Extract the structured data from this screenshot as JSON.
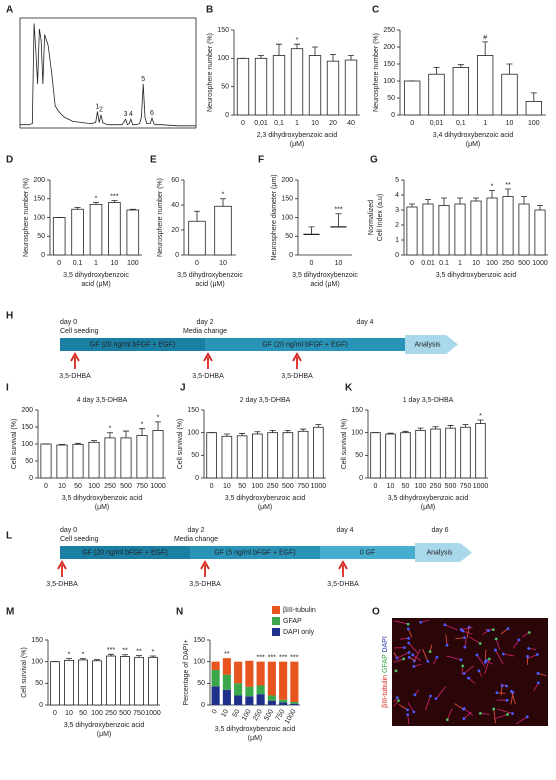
{
  "chart_data": [
    {
      "panel": "A",
      "type": "line",
      "color": "#222222",
      "xlim": [
        0,
        100
      ],
      "ylim": [
        0,
        100
      ],
      "x": [
        0,
        5,
        7,
        8,
        9,
        10,
        11,
        12,
        13,
        14,
        16,
        18,
        20,
        22,
        25,
        30,
        35,
        40,
        43,
        44,
        45,
        46,
        47,
        48,
        50,
        55,
        58,
        60,
        61,
        62,
        63,
        64,
        66,
        68,
        69,
        70,
        71,
        72,
        74,
        75,
        76,
        77,
        80,
        90,
        100
      ],
      "values": [
        3,
        3,
        4,
        95,
        70,
        40,
        90,
        80,
        40,
        85,
        75,
        50,
        20,
        15,
        10,
        6,
        5,
        4,
        5,
        15,
        5,
        12,
        5,
        4,
        3,
        3,
        3,
        8,
        3,
        4,
        8,
        3,
        3,
        4,
        10,
        40,
        10,
        4,
        4,
        9,
        4,
        3,
        3,
        2,
        2
      ],
      "peaks": [
        {
          "label": "1",
          "x": 44
        },
        {
          "label": "2",
          "x": 46
        },
        {
          "label": "3",
          "x": 60
        },
        {
          "label": "4",
          "x": 63
        },
        {
          "label": "5",
          "x": 70
        },
        {
          "label": "6",
          "x": 75
        }
      ]
    },
    {
      "panel": "B",
      "type": "bar",
      "color": "#ffffff",
      "ylabel": [
        "Neurosphere number (%)"
      ],
      "xlabel": [
        "2,3 dihydroxybenzoic acid",
        "(μM)"
      ],
      "categories": [
        "0",
        "0,01",
        "0,1",
        "1",
        "10",
        "20",
        "40"
      ],
      "values": [
        100,
        100,
        105,
        117,
        105,
        95,
        97
      ],
      "errors": [
        0,
        5,
        20,
        8,
        15,
        12,
        8
      ],
      "annotations": [
        null,
        null,
        null,
        "*",
        null,
        null,
        null
      ],
      "ylim": [
        0,
        150
      ],
      "yticks": [
        0,
        50,
        100,
        150
      ]
    },
    {
      "panel": "C",
      "type": "bar",
      "color": "#ffffff",
      "ylabel": [
        "Neurosphere number (%)"
      ],
      "xlabel": [
        "3,4 dihydroxybenzoic acid",
        "(μM)"
      ],
      "categories": [
        "0",
        "0,01",
        "0,1",
        "1",
        "10",
        "100"
      ],
      "values": [
        100,
        120,
        140,
        175,
        120,
        40
      ],
      "errors": [
        0,
        20,
        8,
        40,
        30,
        25
      ],
      "annotations": [
        null,
        null,
        null,
        "#",
        null,
        null
      ],
      "ylim": [
        0,
        250
      ],
      "yticks": [
        0,
        50,
        100,
        150,
        200,
        250
      ]
    },
    {
      "panel": "D",
      "type": "bar",
      "color": "#ffffff",
      "ylabel": [
        "Neurosphere number (%)"
      ],
      "xlabel": [
        "3,5 dihydroxybenzoic",
        "acid (μM)"
      ],
      "categories": [
        "0",
        "0.1",
        "1",
        "10",
        "100"
      ],
      "values": [
        100,
        122,
        135,
        140,
        120
      ],
      "errors": [
        0,
        5,
        5,
        5,
        2
      ],
      "annotations": [
        null,
        null,
        "*",
        "***",
        null
      ],
      "ylim": [
        0,
        200
      ],
      "yticks": [
        0,
        50,
        100,
        150,
        200
      ]
    },
    {
      "panel": "E",
      "type": "bar",
      "color": "#ffffff",
      "ylabel": [
        "Neurosphere number (%)"
      ],
      "xlabel": [
        "3,5 dihydroxybenzoic",
        "acid (μM)"
      ],
      "categories": [
        "0",
        "10"
      ],
      "values": [
        27,
        39
      ],
      "errors": [
        8,
        6
      ],
      "annotations": [
        null,
        "*"
      ],
      "ylim": [
        0,
        60
      ],
      "yticks": [
        0,
        20,
        40,
        60
      ]
    },
    {
      "panel": "F",
      "type": "strip",
      "color": "#222222",
      "ylabel": [
        "Neurosphere diameter (μm)"
      ],
      "xlabel": [
        "3,5 dihydroxybenzoic",
        "acid (μM)"
      ],
      "categories": [
        "0",
        "10"
      ],
      "values": [
        55,
        75
      ],
      "errors": [
        20,
        35
      ],
      "annotations": [
        null,
        "***"
      ],
      "ylim": [
        0,
        200
      ],
      "yticks": [
        0,
        50,
        100,
        150,
        200
      ]
    },
    {
      "panel": "G",
      "type": "bar",
      "color": "#ffffff",
      "ylabel": [
        "Normalized",
        "Cell Index (a.u)"
      ],
      "xlabel": [
        "3,5 dihydroxybenzoic acid"
      ],
      "categories": [
        "0",
        "0.01",
        "0.1",
        "1",
        "10",
        "100",
        "250",
        "500",
        "1000"
      ],
      "values": [
        3.2,
        3.4,
        3.3,
        3.4,
        3.6,
        3.8,
        3.9,
        3.4,
        3.0
      ],
      "errors": [
        0.2,
        0.3,
        0.5,
        0.4,
        0.2,
        0.5,
        0.5,
        0.5,
        0.3
      ],
      "annotations": [
        null,
        null,
        null,
        null,
        null,
        "*",
        "**",
        null,
        null
      ],
      "ylim": [
        0,
        5
      ],
      "yticks": [
        0,
        1,
        2,
        3,
        4,
        5
      ]
    },
    {
      "panel": "I",
      "type": "bar",
      "color": "#ffffff",
      "title": "4 day 3,5-DHBA",
      "ylabel": [
        "Cell survival (%)"
      ],
      "xlabel": [
        "3,5 dihydroxybenzoic acid",
        "(μM)"
      ],
      "categories": [
        "0",
        "10",
        "50",
        "100",
        "250",
        "500",
        "750",
        "1000"
      ],
      "values": [
        100,
        97,
        99,
        105,
        118,
        118,
        125,
        140
      ],
      "errors": [
        0,
        2,
        3,
        5,
        15,
        20,
        20,
        25
      ],
      "annotations": [
        null,
        null,
        null,
        null,
        "*",
        null,
        "*",
        "*"
      ],
      "ylim": [
        0,
        200
      ],
      "yticks": [
        0,
        50,
        100,
        150,
        200
      ]
    },
    {
      "panel": "J",
      "type": "bar",
      "color": "#ffffff",
      "title": "2 day 3,5-DHBA",
      "ylabel": [
        "Cell survival (%)"
      ],
      "xlabel": [
        "3,5 dihydroxybenzoic acid",
        "(μM)"
      ],
      "categories": [
        "0",
        "10",
        "50",
        "100",
        "250",
        "500",
        "750",
        "1000"
      ],
      "values": [
        100,
        92,
        93,
        97,
        100,
        100,
        103,
        112
      ],
      "errors": [
        0,
        5,
        5,
        5,
        5,
        5,
        5,
        6
      ],
      "annotations": [
        null,
        null,
        null,
        null,
        null,
        null,
        null,
        null
      ],
      "ylim": [
        0,
        150
      ],
      "yticks": [
        0,
        50,
        100,
        150
      ]
    },
    {
      "panel": "K",
      "type": "bar",
      "color": "#ffffff",
      "title": "1 day 3,5-DHBA",
      "ylabel": [
        "Cell survival (%)"
      ],
      "xlabel": [
        "3,5 dihydroxybenzoic acid",
        "(μM)"
      ],
      "categories": [
        "0",
        "10",
        "50",
        "100",
        "250",
        "500",
        "750",
        "1000"
      ],
      "values": [
        100,
        97,
        100,
        105,
        108,
        110,
        112,
        120
      ],
      "errors": [
        0,
        2,
        3,
        5,
        5,
        6,
        6,
        8
      ],
      "annotations": [
        null,
        null,
        null,
        null,
        null,
        null,
        null,
        "*"
      ],
      "ylim": [
        0,
        150
      ],
      "yticks": [
        0,
        50,
        100,
        150
      ]
    },
    {
      "panel": "M",
      "type": "bar",
      "color": "#ffffff",
      "ylabel": [
        "Cell survival (%)"
      ],
      "xlabel": [
        "3,5 dihydroxybenzoic acid",
        "(μM)"
      ],
      "categories": [
        "0",
        "10",
        "50",
        "100",
        "250",
        "500",
        "750",
        "1000"
      ],
      "values": [
        100,
        103,
        104,
        102,
        113,
        112,
        110,
        110
      ],
      "errors": [
        0,
        4,
        3,
        3,
        4,
        4,
        4,
        3
      ],
      "annotations": [
        null,
        "*",
        "*",
        null,
        "***",
        "**",
        "**",
        "*"
      ],
      "ylim": [
        0,
        150
      ],
      "yticks": [
        0,
        50,
        100,
        150
      ]
    },
    {
      "panel": "N",
      "type": "stacked",
      "rotate_labels": true,
      "ylabel": [
        "Percentage of DAPI+"
      ],
      "xlabel": [
        "3,5 dihydroxybenzoic acid",
        "(μM)"
      ],
      "categories": [
        "0",
        "10",
        "50",
        "100",
        "250",
        "500",
        "750",
        "1000"
      ],
      "series": [
        {
          "name": "DAPI only",
          "color": "#1f2f8c",
          "values": [
            43,
            35,
            22,
            20,
            25,
            10,
            6,
            3
          ]
        },
        {
          "name": "GFAP",
          "color": "#3aa84a",
          "values": [
            38,
            35,
            28,
            22,
            20,
            12,
            6,
            4
          ]
        },
        {
          "name": "βIII-tubulin",
          "color": "#e8541e",
          "values": [
            19,
            38,
            50,
            60,
            55,
            78,
            88,
            93
          ]
        }
      ],
      "annotations": [
        null,
        "**",
        null,
        null,
        "***",
        "***",
        "***",
        "***"
      ],
      "ylim": [
        0,
        150
      ],
      "yticks": [
        0,
        50,
        100,
        150
      ]
    }
  ],
  "timelines": [
    {
      "panel": "H",
      "days": [
        {
          "day": "day 0",
          "event": "Cell seeding"
        },
        {
          "day": "day 2",
          "event": "Media change"
        },
        {
          "day": "day 4"
        }
      ],
      "segments": [
        {
          "label": "GF (20 ng/ml bFGF + EGF)",
          "color": "#1b7fa3"
        },
        {
          "label": "GF (20 ng/ml bFGF + EGF)",
          "color": "#2a93b8"
        }
      ],
      "analysis": "Analysis",
      "analysis_color": "#a9d8ea",
      "arrow_color": "#d7261e",
      "treatments": [
        "3,5-DHBA",
        "3,5-DHBA",
        "3,5-DHBA"
      ]
    },
    {
      "panel": "L",
      "days": [
        {
          "day": "day 0",
          "event": "Cell seeding"
        },
        {
          "day": "day 2",
          "event": "Media change"
        },
        {
          "day": "day 4"
        },
        {
          "day": "day 6"
        }
      ],
      "segments": [
        {
          "label": "GF (20 ng/ml bFGF + EGF)",
          "color": "#1b7fa3"
        },
        {
          "label": "GF (5 ng/ml bFGF + EGF)",
          "color": "#2a93b8"
        },
        {
          "label": "0 GF",
          "color": "#48aed0"
        }
      ],
      "analysis": "Analysis",
      "analysis_color": "#a9d8ea",
      "arrow_color": "#d7261e",
      "treatments": [
        "3,5-DHBA",
        "3,5-DHBA",
        "3,5-DHBA"
      ]
    }
  ],
  "image_panel": {
    "panel": "O",
    "background": "#2a0608",
    "stains": [
      {
        "text": "βIII-tubulin",
        "color": "#d7261e"
      },
      {
        "text": " GFAP",
        "color": "#2e9e3e"
      },
      {
        "text": " DAPI",
        "color": "#2436a8"
      }
    ]
  }
}
